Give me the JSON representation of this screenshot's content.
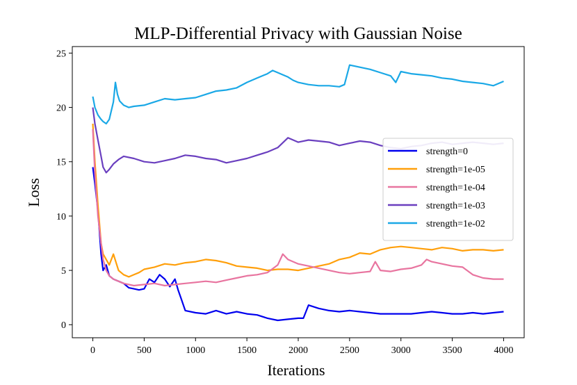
{
  "chart_data": {
    "type": "line",
    "title": "MLP-Differential Privacy with Gaussian Noise",
    "xlabel": "Iterations",
    "ylabel": "Loss",
    "xlim": [
      -200,
      4200
    ],
    "ylim": [
      -1.2,
      25.6
    ],
    "xticks": [
      0,
      500,
      1000,
      1500,
      2000,
      2500,
      3000,
      3500,
      4000
    ],
    "xtick_labels": [
      "0",
      "500",
      "1000",
      "1500",
      "2000",
      "2500",
      "3000",
      "3500",
      "4000"
    ],
    "yticks": [
      0,
      5,
      10,
      15,
      20,
      25
    ],
    "ytick_labels": [
      "0",
      "5",
      "10",
      "15",
      "20",
      "25"
    ],
    "grid": false,
    "legend_position": "center-right",
    "series": [
      {
        "name": "strength=0",
        "color": "#0000ee",
        "x": [
          0,
          20,
          50,
          80,
          100,
          130,
          160,
          200,
          250,
          300,
          350,
          400,
          450,
          500,
          550,
          600,
          650,
          700,
          750,
          800,
          830,
          860,
          900,
          1000,
          1100,
          1200,
          1300,
          1400,
          1500,
          1600,
          1700,
          1800,
          1900,
          2000,
          2050,
          2100,
          2200,
          2300,
          2400,
          2500,
          2600,
          2700,
          2800,
          2900,
          3000,
          3100,
          3200,
          3300,
          3400,
          3500,
          3600,
          3700,
          3800,
          3900,
          4000
        ],
        "values": [
          14.5,
          13.0,
          10.5,
          6.5,
          5.0,
          5.5,
          4.5,
          4.2,
          4.0,
          3.8,
          3.4,
          3.3,
          3.2,
          3.3,
          4.2,
          3.9,
          4.6,
          4.2,
          3.5,
          4.2,
          3.2,
          2.4,
          1.3,
          1.1,
          1.0,
          1.3,
          1.0,
          1.2,
          1.0,
          0.9,
          0.6,
          0.4,
          0.5,
          0.6,
          0.6,
          1.8,
          1.5,
          1.3,
          1.2,
          1.3,
          1.2,
          1.1,
          1.0,
          1.0,
          1.0,
          1.0,
          1.1,
          1.2,
          1.1,
          1.0,
          1.0,
          1.1,
          1.0,
          1.1,
          1.2
        ]
      },
      {
        "name": "strength=1e-05",
        "color": "#ff9f0a",
        "x": [
          0,
          20,
          50,
          80,
          100,
          130,
          160,
          200,
          250,
          300,
          350,
          400,
          450,
          500,
          600,
          700,
          800,
          900,
          1000,
          1100,
          1200,
          1300,
          1400,
          1500,
          1600,
          1700,
          1800,
          1900,
          2000,
          2100,
          2200,
          2300,
          2400,
          2500,
          2600,
          2700,
          2800,
          2900,
          3000,
          3100,
          3200,
          3300,
          3400,
          3500,
          3600,
          3700,
          3800,
          3900,
          4000
        ],
        "values": [
          18.5,
          15.0,
          11.0,
          7.5,
          6.5,
          6.0,
          5.5,
          6.5,
          5.0,
          4.6,
          4.4,
          4.6,
          4.8,
          5.1,
          5.3,
          5.6,
          5.5,
          5.7,
          5.8,
          6.0,
          5.9,
          5.7,
          5.4,
          5.3,
          5.2,
          5.0,
          5.1,
          5.1,
          5.0,
          5.2,
          5.4,
          5.6,
          6.0,
          6.2,
          6.6,
          6.5,
          6.9,
          7.1,
          7.2,
          7.1,
          7.0,
          6.9,
          7.1,
          7.0,
          6.8,
          6.9,
          6.9,
          6.8,
          6.9
        ]
      },
      {
        "name": "strength=1e-04",
        "color": "#e8749f",
        "x": [
          0,
          20,
          50,
          80,
          100,
          130,
          160,
          200,
          250,
          300,
          400,
          500,
          600,
          700,
          800,
          900,
          1000,
          1100,
          1200,
          1300,
          1400,
          1500,
          1600,
          1700,
          1800,
          1850,
          1900,
          2000,
          2100,
          2200,
          2300,
          2400,
          2500,
          2600,
          2700,
          2750,
          2800,
          2900,
          3000,
          3100,
          3200,
          3250,
          3300,
          3400,
          3500,
          3600,
          3700,
          3800,
          3900,
          4000
        ],
        "values": [
          18.0,
          14.0,
          10.0,
          7.5,
          6.0,
          5.0,
          4.5,
          4.2,
          4.0,
          3.8,
          3.6,
          3.7,
          3.8,
          3.6,
          3.7,
          3.8,
          3.9,
          4.0,
          3.9,
          4.1,
          4.3,
          4.5,
          4.6,
          4.8,
          5.5,
          6.5,
          6.0,
          5.6,
          5.4,
          5.2,
          5.0,
          4.8,
          4.7,
          4.8,
          4.9,
          5.8,
          5.0,
          4.9,
          5.1,
          5.2,
          5.5,
          6.0,
          5.8,
          5.6,
          5.4,
          5.3,
          4.6,
          4.3,
          4.2,
          4.2
        ]
      },
      {
        "name": "strength=1e-03",
        "color": "#6a3fbf",
        "x": [
          0,
          20,
          50,
          80,
          100,
          130,
          160,
          200,
          250,
          300,
          400,
          500,
          600,
          700,
          800,
          900,
          1000,
          1100,
          1200,
          1300,
          1400,
          1500,
          1600,
          1700,
          1800,
          1900,
          2000,
          2100,
          2200,
          2300,
          2400,
          2500,
          2600,
          2700,
          2800,
          2900,
          3000,
          3100,
          3200,
          3300,
          3400,
          3500,
          3600,
          3700,
          3800,
          3900,
          4000
        ],
        "values": [
          20.0,
          18.5,
          17.0,
          15.5,
          14.5,
          14.0,
          14.3,
          14.8,
          15.2,
          15.5,
          15.3,
          15.0,
          14.9,
          15.1,
          15.3,
          15.6,
          15.5,
          15.3,
          15.2,
          14.9,
          15.1,
          15.3,
          15.6,
          15.9,
          16.3,
          17.2,
          16.8,
          17.0,
          16.9,
          16.8,
          16.5,
          16.7,
          16.9,
          16.8,
          16.5,
          16.3,
          16.2,
          16.4,
          16.5,
          16.7,
          16.8,
          16.6,
          16.7,
          16.8,
          16.7,
          16.6,
          16.7
        ]
      },
      {
        "name": "strength=1e-02",
        "color": "#1aa8e6",
        "x": [
          0,
          20,
          50,
          80,
          100,
          130,
          160,
          200,
          220,
          240,
          260,
          300,
          350,
          400,
          500,
          600,
          700,
          800,
          900,
          1000,
          1100,
          1200,
          1300,
          1400,
          1500,
          1600,
          1700,
          1750,
          1800,
          1850,
          1900,
          1950,
          2000,
          2100,
          2200,
          2300,
          2400,
          2450,
          2500,
          2600,
          2700,
          2800,
          2900,
          2950,
          3000,
          3100,
          3200,
          3300,
          3400,
          3500,
          3600,
          3700,
          3800,
          3900,
          4000
        ],
        "values": [
          21.0,
          20.0,
          19.3,
          18.9,
          18.7,
          18.5,
          18.9,
          20.5,
          22.3,
          21.2,
          20.6,
          20.2,
          20.0,
          20.1,
          20.2,
          20.5,
          20.8,
          20.7,
          20.8,
          20.9,
          21.2,
          21.5,
          21.6,
          21.8,
          22.3,
          22.7,
          23.1,
          23.4,
          23.2,
          23.0,
          22.8,
          22.5,
          22.3,
          22.1,
          22.0,
          22.0,
          21.9,
          22.1,
          23.9,
          23.7,
          23.5,
          23.2,
          22.9,
          22.3,
          23.3,
          23.1,
          23.0,
          22.9,
          22.7,
          22.6,
          22.4,
          22.3,
          22.2,
          22.0,
          22.4
        ]
      }
    ]
  }
}
